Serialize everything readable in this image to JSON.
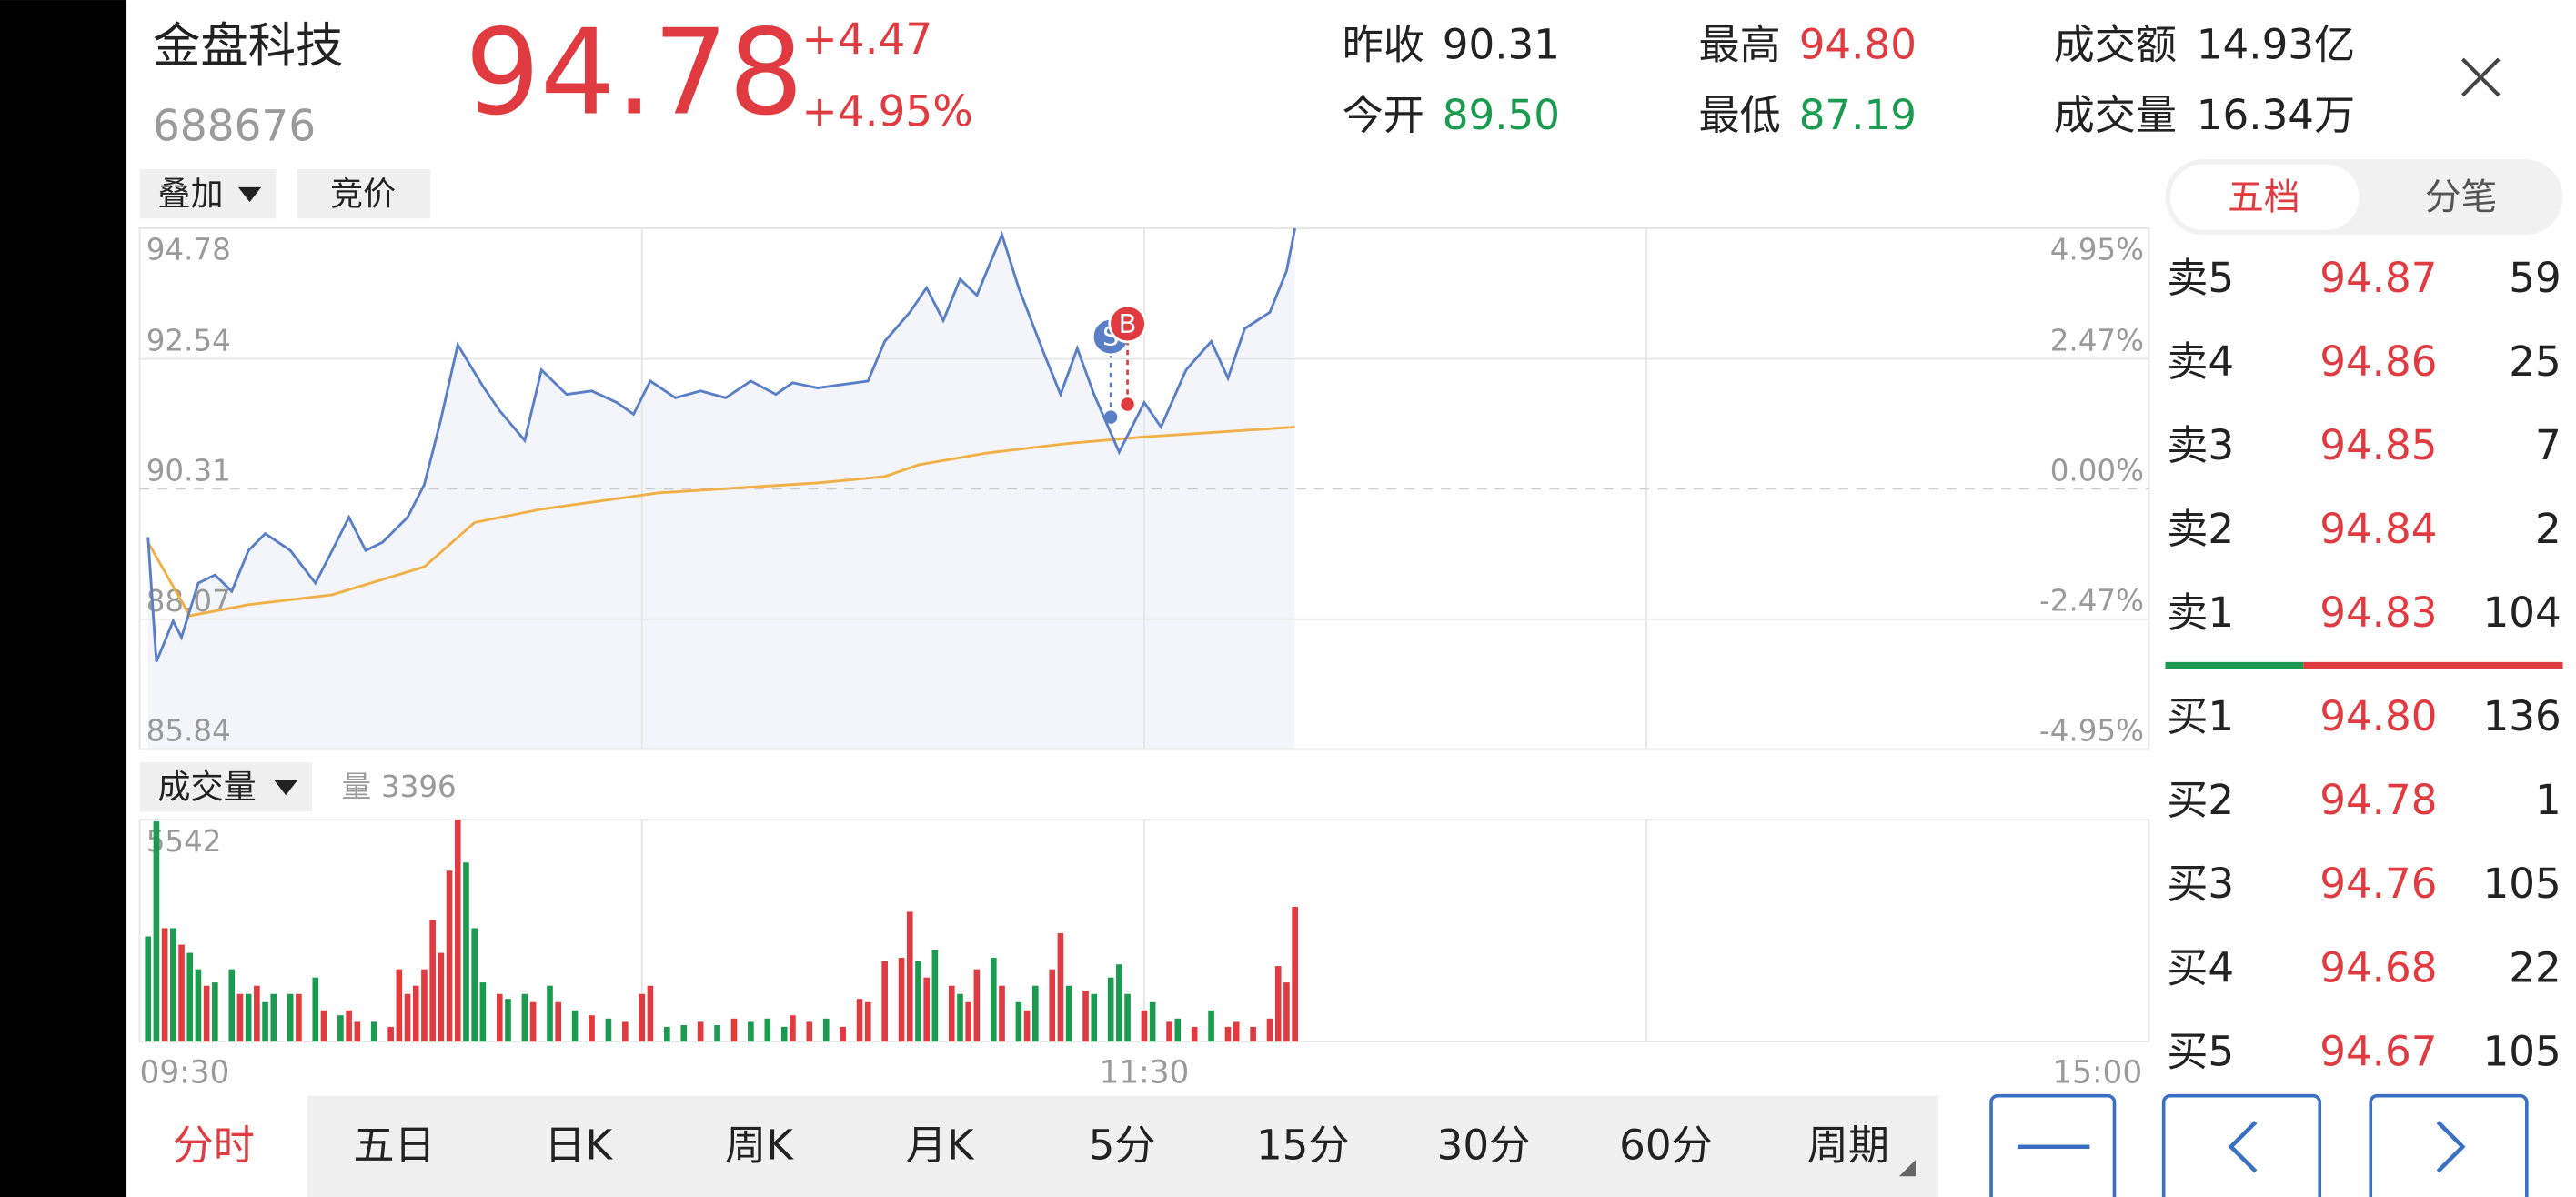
{
  "header": {
    "name": "金盘科技",
    "code": "688676",
    "price": "94.78",
    "change": "+4.47",
    "change_pct": "+4.95%"
  },
  "stats": [
    {
      "label": "昨收",
      "value": "90.31",
      "color": "#222222"
    },
    {
      "label": "今开",
      "value": "89.50",
      "color": "#1a9b4f"
    },
    {
      "label": "最高",
      "value": "94.80",
      "color": "#e03b41"
    },
    {
      "label": "最低",
      "value": "87.19",
      "color": "#1a9b4f"
    },
    {
      "label": "成交额",
      "value": "14.93亿",
      "color": "#222222"
    },
    {
      "label": "成交量",
      "value": "16.34万",
      "color": "#222222"
    }
  ],
  "controls": {
    "overlay": "叠加",
    "auction": "竞价",
    "volume": "成交量"
  },
  "price_chart": {
    "type": "line",
    "xlim": [
      0,
      240
    ],
    "xticks": [
      {
        "value": 0,
        "label": "09:30"
      },
      {
        "value": 120,
        "label": "11:30"
      },
      {
        "value": 240,
        "label": "15:00"
      }
    ],
    "ylim": [
      85.84,
      94.78
    ],
    "yticks": [
      94.78,
      92.54,
      90.31,
      88.07,
      85.84
    ],
    "y2lim": [
      -4.95,
      4.95
    ],
    "y2ticks": [
      {
        "value": 4.95,
        "label": "4.95%"
      },
      {
        "value": 2.47,
        "label": "2.47%"
      },
      {
        "value": 0,
        "label": "0.00%"
      },
      {
        "value": -2.47,
        "label": "-2.47%"
      },
      {
        "value": -4.95,
        "label": "-4.95%"
      }
    ],
    "price_line": {
      "color": "#5a7fc6",
      "x": [
        1,
        2,
        4,
        5,
        7,
        9,
        11,
        13,
        15,
        18,
        21,
        23,
        25,
        27,
        29,
        32,
        34,
        36,
        38,
        41,
        43,
        46,
        48,
        51,
        54,
        57,
        59,
        61,
        64,
        67,
        70,
        73,
        76,
        78,
        81,
        84,
        87,
        89,
        92,
        94,
        96,
        98,
        100,
        103,
        105,
        108,
        110,
        112,
        114,
        117,
        120,
        122,
        125,
        128,
        130,
        132,
        135,
        137,
        138
      ],
      "values": [
        89.48,
        87.34,
        88.04,
        87.76,
        88.69,
        88.83,
        88.55,
        89.25,
        89.54,
        89.25,
        88.69,
        89.25,
        89.82,
        89.25,
        89.39,
        89.82,
        90.38,
        91.51,
        92.78,
        92.07,
        91.65,
        91.14,
        92.35,
        91.93,
        91.99,
        91.79,
        91.59,
        92.16,
        91.87,
        91.99,
        91.87,
        92.16,
        91.93,
        92.13,
        92.04,
        92.1,
        92.16,
        92.84,
        93.34,
        93.76,
        93.2,
        93.91,
        93.63,
        94.67,
        93.76,
        92.64,
        91.93,
        92.72,
        91.93,
        90.94,
        91.79,
        91.37,
        92.35,
        92.84,
        92.21,
        93.06,
        93.34,
        94.05,
        94.78
      ]
    },
    "avg_line": {
      "color": "#f0b046",
      "x": [
        1,
        6,
        13,
        23,
        34,
        40,
        48,
        62,
        81,
        89,
        93,
        101,
        111,
        120,
        138
      ],
      "values": [
        89.39,
        88.13,
        88.32,
        88.49,
        88.97,
        89.73,
        89.96,
        90.24,
        90.41,
        90.52,
        90.72,
        90.92,
        91.09,
        91.2,
        91.37
      ]
    },
    "markers": [
      {
        "label": "S",
        "x": 116,
        "value": 91.54,
        "color": "#5a7fc6"
      },
      {
        "label": "B",
        "x": 118,
        "value": 91.76,
        "color": "#e03b41"
      }
    ]
  },
  "volume_chart": {
    "type": "bar",
    "volume_label": "量",
    "volume_value": 3396,
    "ylim": [
      0,
      5542
    ],
    "yticks": [
      5542
    ],
    "series": [
      {
        "color": "#e03b41",
        "x": [
          3,
          5,
          8,
          12,
          14,
          19,
          22,
          25,
          26,
          30,
          31,
          32,
          33,
          34,
          35,
          36,
          37,
          38,
          43,
          47,
          50,
          54,
          58,
          60,
          61,
          67,
          71,
          78,
          80,
          84,
          86,
          87,
          89,
          91,
          92,
          94,
          97,
          99,
          100,
          103,
          106,
          109,
          110,
          113,
          120,
          123,
          126,
          130,
          131,
          133,
          135,
          136,
          137,
          138
        ],
        "values": [
          2833,
          2422,
          1396,
          1190,
          1396,
          1190,
          780,
          780,
          493,
          369,
          1806,
          1190,
          1396,
          1806,
          3038,
          2217,
          4269,
          5542,
          1190,
          985,
          985,
          657,
          493,
          1190,
          1396,
          493,
          575,
          657,
          493,
          369,
          1067,
          985,
          2011,
          2093,
          3243,
          1601,
          1396,
          985,
          1806,
          1396,
          780,
          1806,
          2709,
          1272,
          780,
          493,
          369,
          369,
          493,
          369,
          575,
          1888,
          1478,
          3366
        ]
      },
      {
        "color": "#1a9b4f",
        "x": [
          1,
          2,
          4,
          6,
          7,
          9,
          11,
          13,
          15,
          16,
          18,
          21,
          24,
          28,
          39,
          40,
          41,
          44,
          46,
          49,
          52,
          56,
          63,
          65,
          69,
          73,
          75,
          77,
          82,
          93,
          95,
          98,
          102,
          105,
          107,
          111,
          114,
          116,
          117,
          118,
          121,
          124,
          128
        ],
        "values": [
          2627,
          5501,
          2833,
          2217,
          1806,
          1478,
          1806,
          1190,
          985,
          1190,
          1190,
          1601,
          657,
          493,
          4475,
          2833,
          1478,
          1067,
          1190,
          1396,
          780,
          575,
          369,
          411,
          411,
          493,
          575,
          369,
          575,
          2011,
          2299,
          1190,
          2093,
          985,
          1396,
          1396,
          1190,
          1601,
          1929,
          1190,
          985,
          575,
          780
        ]
      }
    ]
  },
  "order_book": {
    "tabs": [
      "五档",
      "分笔"
    ],
    "asks": [
      {
        "label": "卖5",
        "price": "94.87",
        "volume": "59"
      },
      {
        "label": "卖4",
        "price": "94.86",
        "volume": "25"
      },
      {
        "label": "卖3",
        "price": "94.85",
        "volume": "7"
      },
      {
        "label": "卖2",
        "price": "94.84",
        "volume": "2"
      },
      {
        "label": "卖1",
        "price": "94.83",
        "volume": "104"
      }
    ],
    "bids": [
      {
        "label": "买1",
        "price": "94.80",
        "volume": "136"
      },
      {
        "label": "买2",
        "price": "94.78",
        "volume": "1"
      },
      {
        "label": "买3",
        "price": "94.76",
        "volume": "105"
      },
      {
        "label": "买4",
        "price": "94.68",
        "volume": "22"
      },
      {
        "label": "买5",
        "price": "94.67",
        "volume": "105"
      }
    ]
  },
  "tabs": [
    "分时",
    "五日",
    "日K",
    "周K",
    "月K",
    "5分",
    "15分",
    "30分",
    "60分",
    "周期"
  ]
}
